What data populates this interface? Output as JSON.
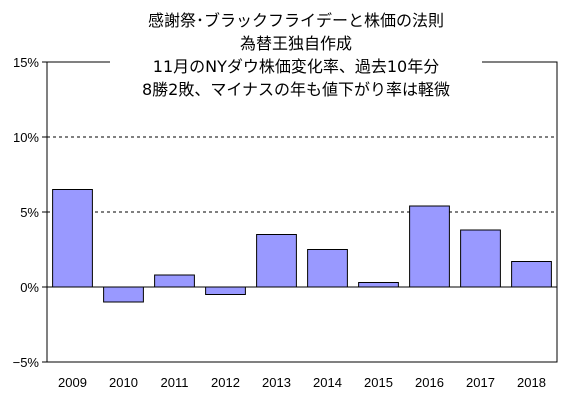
{
  "chart_data": {
    "type": "bar",
    "title_lines": [
      "感謝祭･ブラックフライデーと株価の法則",
      "為替王独自作成",
      "11月のNYダウ株価変化率、過去10年分",
      "8勝2敗、マイナスの年も値下がり率は軽微"
    ],
    "categories": [
      "2009",
      "2010",
      "2011",
      "2012",
      "2013",
      "2014",
      "2015",
      "2016",
      "2017",
      "2018"
    ],
    "values": [
      6.5,
      -1.0,
      0.8,
      -0.5,
      3.5,
      2.5,
      0.3,
      5.4,
      3.8,
      1.7
    ],
    "ylim": [
      -5,
      15
    ],
    "yticks": [
      -5,
      0,
      5,
      10,
      15
    ],
    "ytick_labels": [
      "−5%",
      "0%",
      "5%",
      "10%",
      "15%"
    ],
    "grid": "dashed horizontal at 5% and 10%",
    "bar_color": "#9999ff",
    "bar_edge_color": "#000000"
  }
}
